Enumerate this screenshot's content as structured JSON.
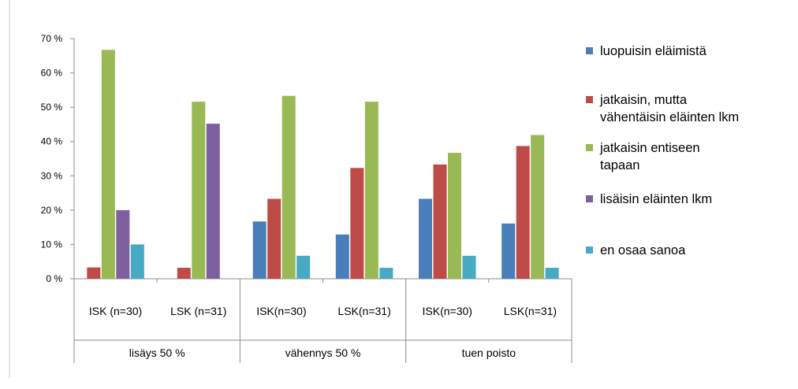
{
  "chart_data": {
    "type": "bar",
    "title": "",
    "xlabel": "",
    "ylabel": "",
    "ylim": [
      0,
      70
    ],
    "yticks": [
      0,
      10,
      20,
      30,
      40,
      50,
      60,
      70
    ],
    "ytick_labels": [
      "0 %",
      "10 %",
      "20 %",
      "30 %",
      "40 %",
      "50 %",
      "60 %",
      "70 %"
    ],
    "grid": false,
    "legend_position": "right",
    "groups": [
      "lisäys 50 %",
      "vähennys 50 %",
      "tuen poisto"
    ],
    "categories": [
      "ISK (n=30)",
      "LSK (n=31)",
      "ISK(n=30)",
      "LSK(n=31)",
      "ISK(n=30)",
      "LSK(n=31)"
    ],
    "series": [
      {
        "name": "luopuisin eläimistä",
        "legend_lines": [
          "luopuisin eläimistä"
        ],
        "color": "#4a7ebb",
        "values": [
          0,
          0,
          16.7,
          12.9,
          23.3,
          16.1
        ]
      },
      {
        "name": "jatkaisin, mutta vähentäisin eläinten lkm",
        "legend_lines": [
          "jatkaisin, mutta",
          "vähentäisin eläinten lkm"
        ],
        "color": "#be4b48",
        "values": [
          3.3,
          3.2,
          23.3,
          32.3,
          33.3,
          38.7
        ]
      },
      {
        "name": "jatkaisin entiseen tapaan",
        "legend_lines": [
          "jatkaisin entiseen",
          "tapaan"
        ],
        "color": "#98b954",
        "values": [
          66.7,
          51.6,
          53.3,
          51.6,
          36.7,
          41.9
        ]
      },
      {
        "name": "lisäisin eläinten lkm",
        "legend_lines": [
          "lisäisin eläinten lkm"
        ],
        "color": "#7d60a0",
        "values": [
          20,
          45.2,
          0,
          0,
          0,
          0
        ]
      },
      {
        "name": "en osaa sanoa",
        "legend_lines": [
          "en osaa sanoa"
        ],
        "color": "#46aac5",
        "values": [
          10,
          0,
          6.7,
          3.2,
          6.7,
          3.2
        ]
      }
    ]
  }
}
